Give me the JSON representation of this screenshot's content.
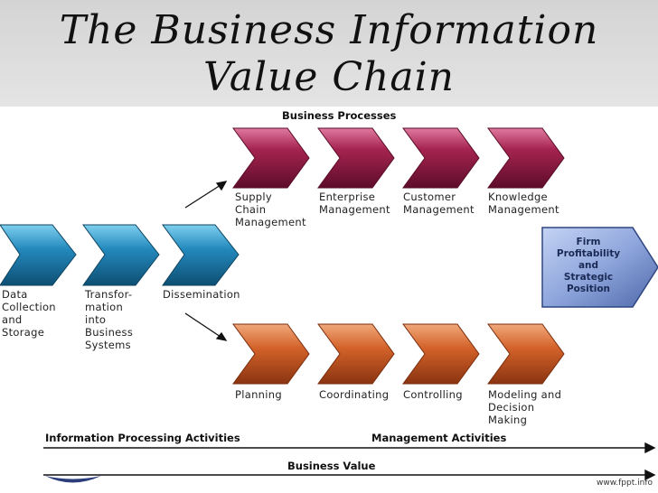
{
  "title": {
    "line1": "The Business Information",
    "line2": "Value Chain"
  },
  "sections": {
    "business_processes": "Business Processes",
    "information_processing": "Information Processing Activities",
    "management_activities": "Management Activities",
    "business_value": "Business Value"
  },
  "business_processes": [
    "Supply\nChain\nManagement",
    "Enterprise\nManagement",
    "Customer\nManagement",
    "Knowledge\nManagement"
  ],
  "information_activities": [
    "Data\nCollection\nand\nStorage",
    "Transfor-\nmation\ninto\nBusiness\nSystems",
    "Dissemination"
  ],
  "management_activities_items": [
    "Planning",
    "Coordinating",
    "Controlling",
    "Modeling and\nDecision\nMaking"
  ],
  "outcome": "Firm\nProfitability\nand\nStrategic\nPosition",
  "watermark": "www.fppt.info",
  "colors": {
    "business": "#9e1f48",
    "information": "#1e86b8",
    "management": "#d3622a",
    "outcome": "#7e9ad8"
  }
}
